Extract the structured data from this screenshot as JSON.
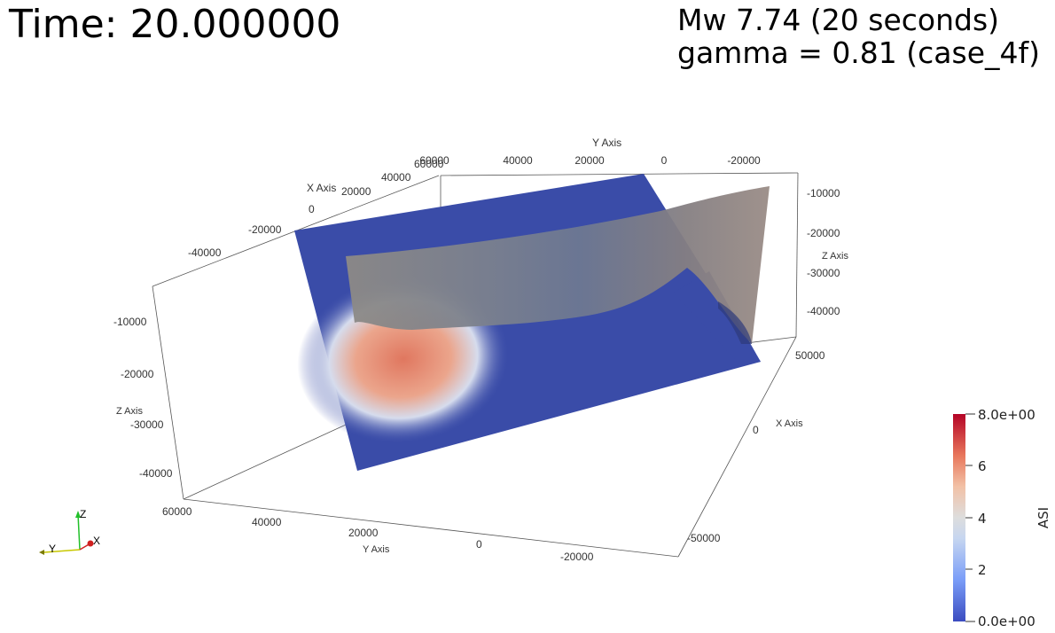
{
  "header": {
    "time_text": "Time: 20.000000",
    "mw_text": "Mw 7.74 (20 seconds)",
    "gamma_text": "gamma = 0.81 (case_4f)"
  },
  "axes": {
    "top_y_axis_title": "Y Axis",
    "top_y_ticks": [
      "60000",
      "40000",
      "20000",
      "0",
      "-20000"
    ],
    "top_x_axis_title": "X Axis",
    "top_x_ticks": [
      "-40000",
      "-20000",
      "0",
      "20000",
      "40000"
    ],
    "right_z_axis_title": "Z Axis",
    "right_z_ticks": [
      "-10000",
      "-20000",
      "-30000",
      "-40000"
    ],
    "right_x_axis_title": "X Axis",
    "right_x_ticks": [
      "50000",
      "0",
      "-50000"
    ],
    "left_z_axis_title": "Z Axis",
    "left_z_ticks": [
      "-10000",
      "-20000",
      "-30000",
      "-40000"
    ],
    "bottom_y_axis_title": "Y Axis",
    "bottom_y_ticks": [
      "60000",
      "40000",
      "20000",
      "0",
      "-20000"
    ]
  },
  "orientation": {
    "z": "Z",
    "y": "Y",
    "x": "X"
  },
  "colorbar": {
    "title": "ASI",
    "max_label": "8.0e+00",
    "min_label": "0.0e+00",
    "tick_labels": [
      "6",
      "4",
      "2"
    ],
    "colors": [
      "#3b4cc0",
      "#7a9df8",
      "#c6d6f0",
      "#dddddd",
      "#f2c1a6",
      "#e8775c",
      "#b40426"
    ]
  },
  "colors": {
    "plane_blue": "#3a4ca8",
    "fault_gray": "#8a8d96",
    "hot": "#e0775f"
  }
}
